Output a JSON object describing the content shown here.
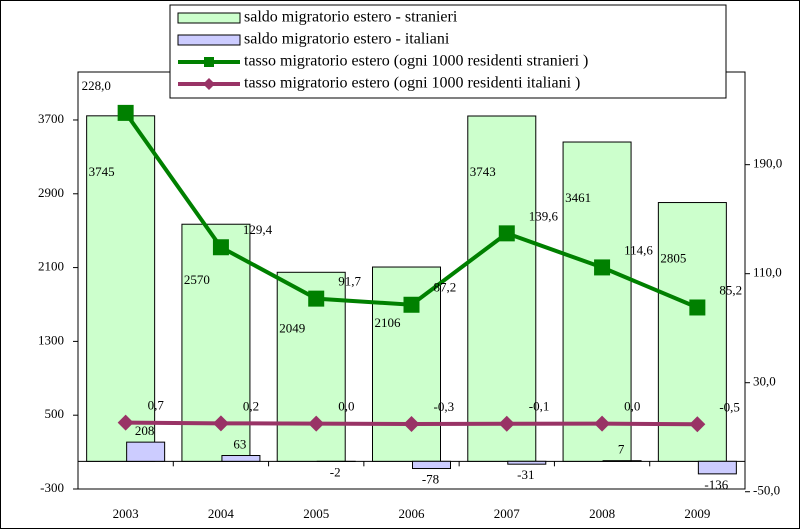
{
  "chart_data": {
    "type": "bar-line",
    "categories": [
      "2003",
      "2004",
      "2005",
      "2006",
      "2007",
      "2008",
      "2009"
    ],
    "series": [
      {
        "name": "saldo migratorio estero - stranieri",
        "type": "bar",
        "color": "#ccffcc",
        "values": [
          3745,
          2570,
          2049,
          2106,
          3743,
          3461,
          2805
        ]
      },
      {
        "name": "saldo migratorio estero - italiani",
        "type": "bar",
        "color": "#ccccff",
        "values": [
          208,
          63,
          -2,
          -78,
          -31,
          7,
          -136
        ]
      },
      {
        "name": "tasso migratorio estero (ogni 1000 residenti stranieri )",
        "type": "line",
        "axis": "y2",
        "color": "#008000",
        "marker": "square",
        "values": [
          228.0,
          129.4,
          91.7,
          87.2,
          139.6,
          114.6,
          85.2
        ],
        "value_labels": [
          "228,0",
          "129,4",
          "91,7",
          "87,2",
          "139,6",
          "114,6",
          "85,2"
        ]
      },
      {
        "name": "tasso migratorio estero (ogni 1000 residenti italiani )",
        "type": "line",
        "axis": "y2",
        "color": "#993366",
        "marker": "diamond",
        "values": [
          0.7,
          0.2,
          0.0,
          -0.3,
          -0.1,
          0.0,
          -0.5
        ],
        "value_labels": [
          "0,7",
          "0,2",
          "0,0",
          "-0,3",
          "-0,1",
          "0,0",
          "-0,5"
        ]
      }
    ],
    "ylim": [
      -300,
      4220
    ],
    "yticks": [
      -300,
      500,
      1300,
      2100,
      2900,
      3700
    ],
    "y2lim": [
      -48,
      258
    ],
    "y2ticks": [
      {
        "value": -50,
        "label": "-50,0"
      },
      {
        "value": 30,
        "label": "30,0"
      },
      {
        "value": 110,
        "label": "110,0"
      },
      {
        "value": 190,
        "label": "190,0"
      }
    ],
    "legend": "top"
  }
}
